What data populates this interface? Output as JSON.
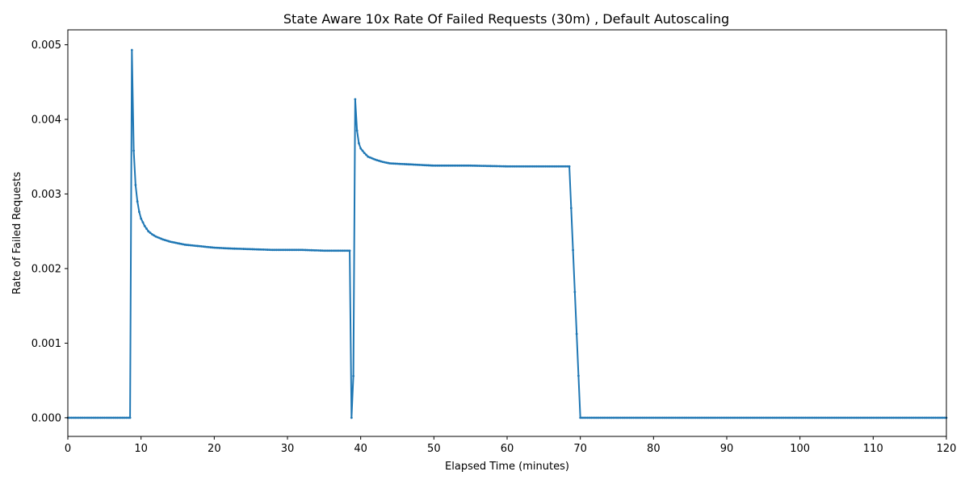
{
  "chart_data": {
    "type": "line",
    "title": "State Aware 10x Rate Of Failed Requests (30m) , Default Autoscaling",
    "xlabel": "Elapsed Time (minutes)",
    "ylabel": "Rate of Failed Requests",
    "xlim": [
      0,
      120
    ],
    "ylim": [
      -0.00025,
      0.0052
    ],
    "xticks": [
      0,
      10,
      20,
      30,
      40,
      50,
      60,
      70,
      80,
      90,
      100,
      110,
      120
    ],
    "yticks": [
      0.0,
      0.001,
      0.002,
      0.003,
      0.004,
      0.005
    ],
    "ytick_labels": [
      "0.000",
      "0.001",
      "0.002",
      "0.003",
      "0.004",
      "0.005"
    ],
    "grid": false,
    "legend": "none",
    "series": [
      {
        "color": "#1f77b4",
        "x": [
          0,
          2,
          4,
          6,
          8,
          8.5,
          8.75,
          9.0,
          9.25,
          9.5,
          9.75,
          10.0,
          10.5,
          11.0,
          11.5,
          12.0,
          13.0,
          14.0,
          15.0,
          16.0,
          18.0,
          20.0,
          22.0,
          25.0,
          28.0,
          32.0,
          35.0,
          38.0,
          38.5,
          38.75,
          39.0,
          39.25,
          39.5,
          39.75,
          40.0,
          40.5,
          41.0,
          42.0,
          43.0,
          44.0,
          46.0,
          48.0,
          50.0,
          55.0,
          60.0,
          65.0,
          68.25,
          68.5,
          68.75,
          70,
          80,
          90,
          100,
          110,
          120
        ],
        "y": [
          0.0,
          0.0,
          0.0,
          0.0,
          0.0,
          0.0,
          0.00493,
          0.00358,
          0.00312,
          0.0029,
          0.00276,
          0.00267,
          0.00257,
          0.0025,
          0.00246,
          0.00243,
          0.00239,
          0.00236,
          0.00234,
          0.00232,
          0.0023,
          0.00228,
          0.00227,
          0.00226,
          0.00225,
          0.00225,
          0.00224,
          0.00224,
          0.00224,
          0.0,
          0.00056,
          0.00427,
          0.00385,
          0.00368,
          0.00361,
          0.00355,
          0.0035,
          0.00346,
          0.00343,
          0.00341,
          0.0034,
          0.00339,
          0.00338,
          0.00338,
          0.00337,
          0.00337,
          0.00337,
          0.00337,
          0.00281,
          0.0,
          0.0,
          0.0,
          0.0,
          0.0,
          0.0
        ]
      }
    ]
  }
}
